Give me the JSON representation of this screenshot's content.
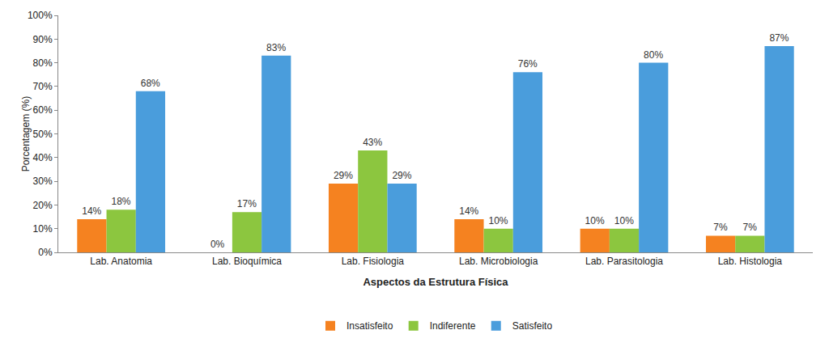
{
  "chart_data": {
    "type": "bar",
    "categories": [
      "Lab. Anatomia",
      "Lab. Bioquímica",
      "Lab. Fisiologia",
      "Lab. Microbiologia",
      "Lab. Parasitologia",
      "Lab. Histologia"
    ],
    "series": [
      {
        "name": "Insatisfeito",
        "color": "#f58220",
        "values": [
          14,
          0,
          29,
          14,
          10,
          7
        ],
        "value_labels": [
          "14%",
          "0%",
          "29%",
          "14%",
          "10%",
          "7%"
        ]
      },
      {
        "name": "Indiferente",
        "color": "#8cc63f",
        "values": [
          18,
          17,
          43,
          10,
          10,
          7
        ],
        "value_labels": [
          "18%",
          "17%",
          "43%",
          "10%",
          "10%",
          "7%"
        ]
      },
      {
        "name": "Satisfeito",
        "color": "#4a9ddc",
        "values": [
          68,
          83,
          29,
          76,
          80,
          87
        ],
        "value_labels": [
          "68%",
          "83%",
          "29%",
          "76%",
          "80%",
          "87%"
        ]
      }
    ],
    "x_label": "Aspectos da Estrutura Física",
    "y_label": "Porcentagem (%)",
    "ylim": [
      0,
      100
    ],
    "yticks": [
      {
        "value": 0,
        "label": "0%"
      },
      {
        "value": 10,
        "label": "10%"
      },
      {
        "value": 20,
        "label": "20%"
      },
      {
        "value": 30,
        "label": "30%"
      },
      {
        "value": 40,
        "label": "40%"
      },
      {
        "value": 50,
        "label": "50%"
      },
      {
        "value": 60,
        "label": "60%"
      },
      {
        "value": 70,
        "label": "70%"
      },
      {
        "value": 80,
        "label": "80%"
      },
      {
        "value": 90,
        "label": "90%"
      },
      {
        "value": 100,
        "label": "100%"
      }
    ],
    "grid": false,
    "legend": "bottom",
    "data_labels": true
  }
}
